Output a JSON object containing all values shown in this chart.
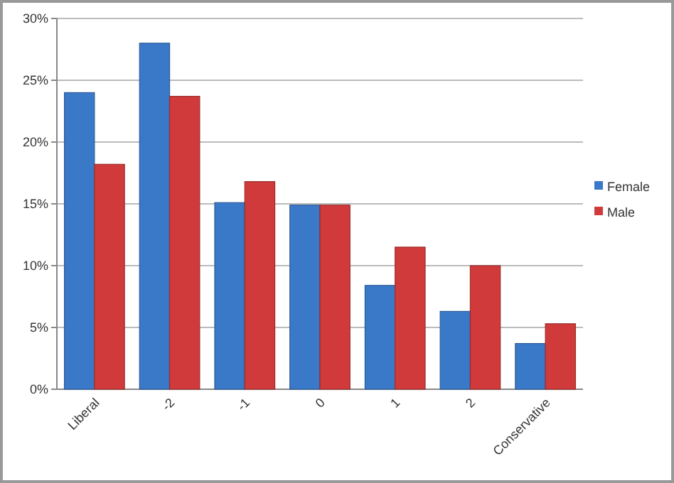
{
  "chart_data": {
    "type": "bar",
    "categories": [
      "Liberal",
      "-2",
      "-1",
      "0",
      "1",
      "2",
      "Conservative"
    ],
    "series": [
      {
        "name": "Female",
        "color": "#3a78c8",
        "values": [
          24.0,
          28.0,
          15.1,
          14.9,
          8.4,
          6.3,
          3.7
        ]
      },
      {
        "name": "Male",
        "color": "#d03a3a",
        "values": [
          18.2,
          23.7,
          16.8,
          14.9,
          11.5,
          10.0,
          5.3
        ]
      }
    ],
    "ylim": [
      0,
      30
    ],
    "yticks": [
      {
        "value": 0,
        "label": "0%"
      },
      {
        "value": 5,
        "label": "5%"
      },
      {
        "value": 10,
        "label": "10%"
      },
      {
        "value": 15,
        "label": "15%"
      },
      {
        "value": 20,
        "label": "20%"
      },
      {
        "value": 25,
        "label": "25%"
      },
      {
        "value": 30,
        "label": "30%"
      }
    ],
    "grid": "y",
    "legend": "right"
  }
}
